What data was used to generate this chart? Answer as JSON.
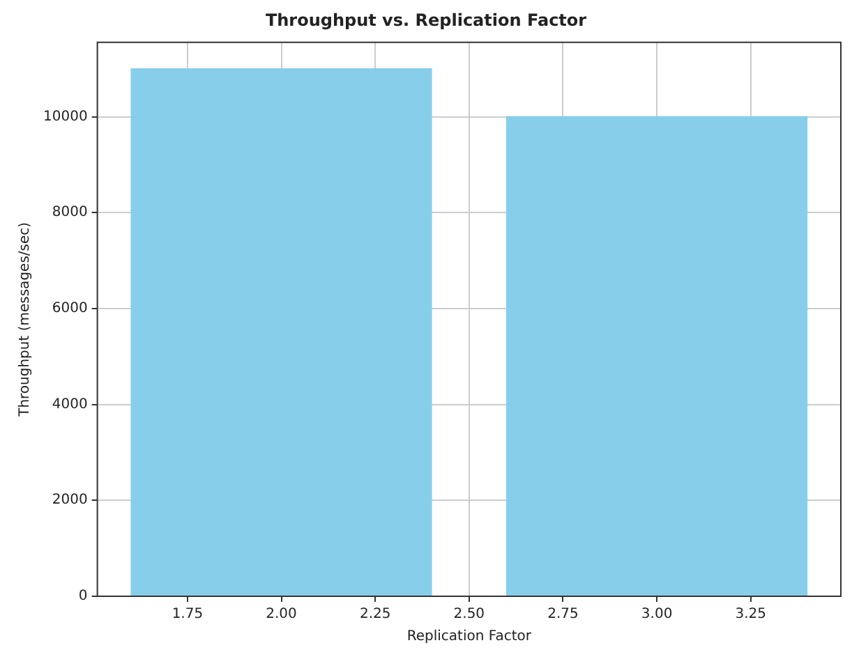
{
  "chart_data": {
    "type": "bar",
    "title": "Throughput vs. Replication Factor",
    "xlabel": "Replication Factor",
    "ylabel": "Throughput (messages/sec)",
    "x": [
      2,
      3
    ],
    "values": [
      11000,
      10000
    ],
    "color": "#87ceeb",
    "xlim": [
      1.51,
      3.49
    ],
    "xticks": [
      {
        "value": 1.75,
        "label": "1.75"
      },
      {
        "value": 2,
        "label": "2.00"
      },
      {
        "value": 2.25,
        "label": "2.25"
      },
      {
        "value": 2.5,
        "label": "2.50"
      },
      {
        "value": 2.75,
        "label": "2.75"
      },
      {
        "value": 3,
        "label": "3.00"
      },
      {
        "value": 3.25,
        "label": "3.25"
      }
    ],
    "ylim": [
      0,
      11550
    ],
    "yticks": [
      0,
      2000,
      4000,
      6000,
      8000,
      10000
    ],
    "grid": true
  }
}
